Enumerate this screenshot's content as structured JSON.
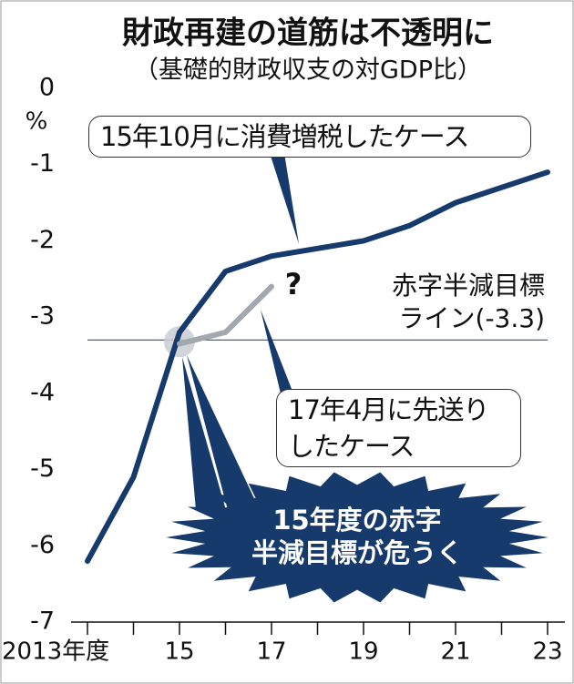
{
  "chart_data": {
    "type": "line",
    "title": "財政再建の道筋は不透明に",
    "subtitle": "（基礎的財政収支の対GDP比）",
    "y_unit": "%",
    "x": [
      2013,
      2014,
      2015,
      2016,
      2017,
      2018,
      2019,
      2020,
      2021,
      2022,
      2023
    ],
    "series": [
      {
        "name": "15年10月に消費増税したケース",
        "color": "#163a6b",
        "values": [
          -6.2,
          -5.1,
          -3.2,
          -2.4,
          -2.2,
          -2.1,
          -2.0,
          -1.8,
          -1.5,
          -1.3,
          -1.1
        ]
      },
      {
        "name": "17年4月に先送りしたケース",
        "color": "#a3a7ae",
        "values": [
          null,
          null,
          -3.35,
          -3.2,
          -2.6,
          null,
          null,
          null,
          null,
          null,
          null
        ]
      }
    ],
    "xlim": [
      2013,
      2023
    ],
    "xticks": [
      {
        "value": 2013,
        "label": "2013年度"
      },
      {
        "value": 2015,
        "label": "15"
      },
      {
        "value": 2017,
        "label": "17"
      },
      {
        "value": 2019,
        "label": "19"
      },
      {
        "value": 2021,
        "label": "21"
      },
      {
        "value": 2023,
        "label": "23"
      }
    ],
    "xminor_ticks": [
      2014,
      2016,
      2018,
      2020,
      2022
    ],
    "ylim": [
      -7,
      0
    ],
    "yticks": [
      0,
      -1,
      -2,
      -3,
      -4,
      -5,
      -6,
      -7
    ],
    "reference_line": {
      "value": -3.3,
      "label_lines": [
        "赤字半減目標",
        "ライン(-3.3)"
      ]
    },
    "question_mark": "?",
    "burst_lines": [
      "15年度の赤字",
      "半減目標が危うく"
    ]
  }
}
